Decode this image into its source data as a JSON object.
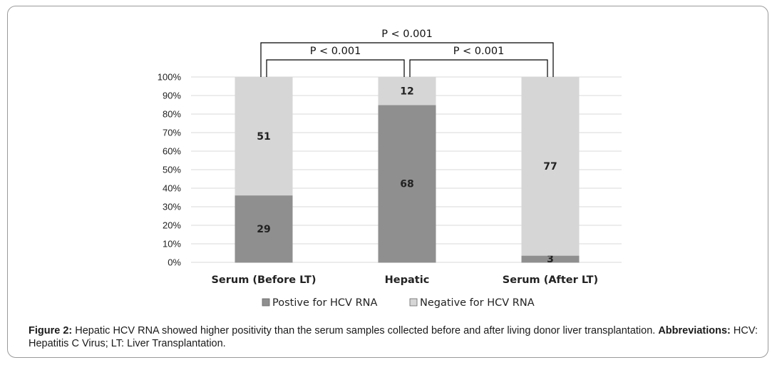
{
  "chart_data": {
    "type": "bar",
    "stacked": true,
    "percent_scale": true,
    "categories": [
      "Serum (Before LT)",
      "Hepatic",
      "Serum (After LT)"
    ],
    "series": [
      {
        "name": "Postive for HCV RNA",
        "values": [
          29,
          68,
          3
        ],
        "color": "#8f8f8f"
      },
      {
        "name": "Negative for HCV RNA",
        "values": [
          51,
          12,
          77
        ],
        "color": "#d6d6d6"
      }
    ],
    "ylim": [
      0,
      100
    ],
    "yticks": [
      "0%",
      "10%",
      "20%",
      "30%",
      "40%",
      "50%",
      "60%",
      "70%",
      "80%",
      "90%",
      "100%"
    ],
    "grid": true,
    "legend_position": "bottom",
    "annotations": [
      {
        "label": "P < 0.001",
        "from": "Serum (Before LT)",
        "to": "Serum (After LT)",
        "level": "outer"
      },
      {
        "label": "P < 0.001",
        "from": "Serum (Before LT)",
        "to": "Hepatic",
        "level": "inner"
      },
      {
        "label": "P < 0.001",
        "from": "Hepatic",
        "to": "Serum (After LT)",
        "level": "inner"
      }
    ]
  },
  "caption": {
    "figure_label": "Figure 2:",
    "text": " Hepatic HCV RNA showed higher positivity than the serum samples collected before and after living donor liver transplantation. ",
    "abbrev_label": "Abbreviations:",
    "abbrev_text": "  HCV: Hepatitis C Virus; LT: Liver Transplantation."
  }
}
